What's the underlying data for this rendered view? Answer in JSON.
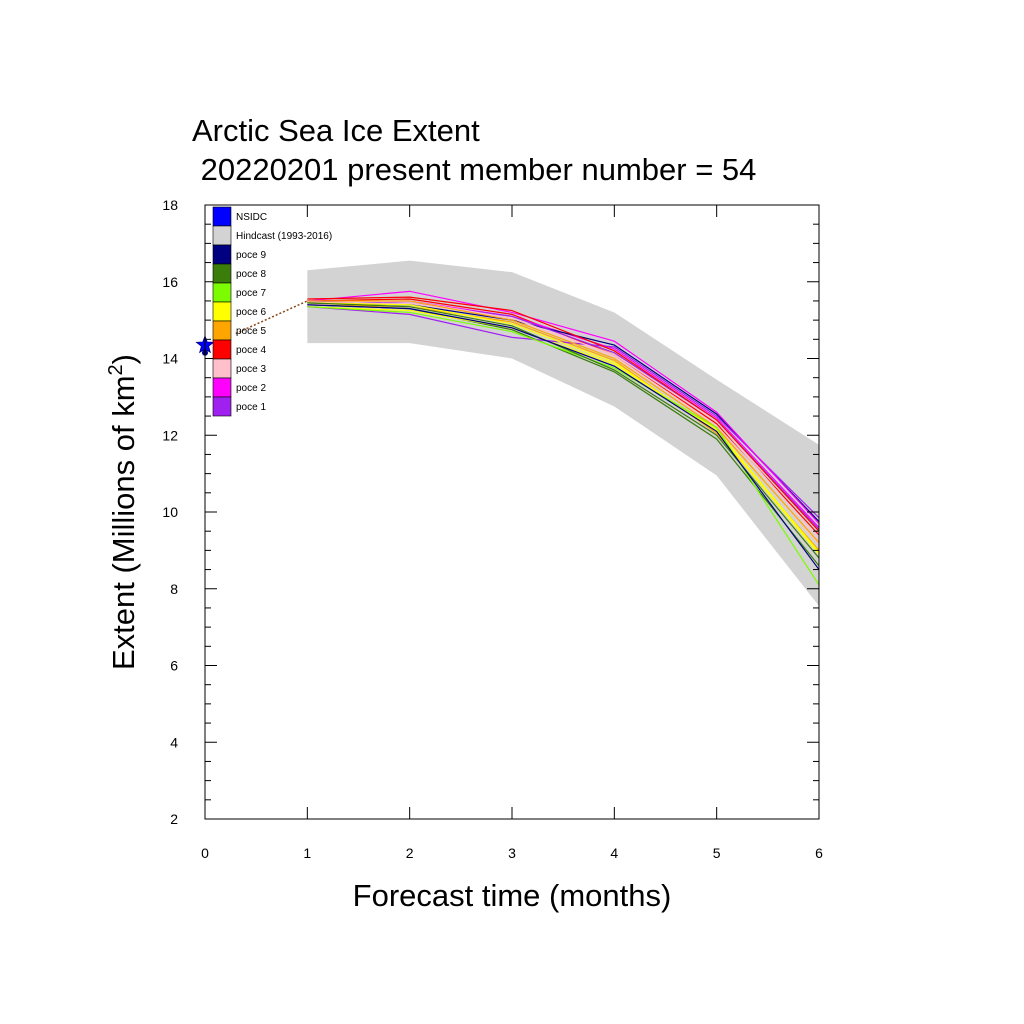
{
  "chart_data": {
    "type": "line",
    "title": "Arctic Sea Ice Extent",
    "subtitle": " 20220201 present member number = 54",
    "xlabel": "Forecast time (months)",
    "ylabel_main": "Extent (Millions of km",
    "ylabel_sup": "2",
    "ylabel_close": ")",
    "xlim": [
      0,
      6
    ],
    "ylim": [
      2,
      18
    ],
    "x_ticks": [
      "0",
      "1",
      "2",
      "3",
      "4",
      "5",
      "6"
    ],
    "y_ticks": [
      "2",
      "4",
      "6",
      "8",
      "10",
      "12",
      "14",
      "16",
      "18"
    ],
    "grid": false,
    "legend_position": "top-left",
    "x": [
      1,
      2,
      3,
      4,
      5,
      6
    ],
    "observation": {
      "name": "NSIDC",
      "x": 0,
      "y": 14.35,
      "color": "#0000ff"
    },
    "observation_point": {
      "x": 0,
      "y": 14.15,
      "color": "#000080"
    },
    "hindcast": {
      "name": "Hindcast (1993-2016)",
      "color": "#d3d3d3",
      "upper": [
        16.3,
        16.55,
        16.25,
        15.2,
        13.45,
        11.75
      ],
      "lower": [
        14.4,
        14.4,
        14.0,
        12.75,
        10.95,
        7.55
      ]
    },
    "connector": {
      "x": [
        0.3,
        1
      ],
      "y": [
        14.65,
        15.5
      ],
      "color": "#8b4513"
    },
    "series": [
      {
        "name": "poce 9",
        "color": "#000080",
        "values": [
          15.4,
          15.3,
          14.8,
          13.8,
          12.1,
          8.5
        ]
      },
      {
        "name": "poce 8",
        "color": "#3a7d0a",
        "values": [
          15.45,
          15.35,
          14.85,
          13.7,
          12.0,
          8.8
        ]
      },
      {
        "name": "poce 7",
        "color": "#7cfc00",
        "values": [
          15.35,
          15.2,
          14.7,
          13.75,
          12.2,
          8.1
        ]
      },
      {
        "name": "poce 6",
        "color": "#ffff00",
        "values": [
          15.45,
          15.4,
          14.9,
          13.9,
          12.1,
          8.9
        ]
      },
      {
        "name": "poce 5",
        "color": "#ffa500",
        "values": [
          15.5,
          15.5,
          15.0,
          14.0,
          12.2,
          9.2
        ]
      },
      {
        "name": "poce 4",
        "color": "#ff0000",
        "values": [
          15.55,
          15.6,
          15.25,
          14.2,
          12.4,
          9.5
        ]
      },
      {
        "name": "poce 3",
        "color": "#ffc0cb",
        "values": [
          15.4,
          15.45,
          15.05,
          14.1,
          12.35,
          9.3
        ]
      },
      {
        "name": "poce 2",
        "color": "#ff00ff",
        "values": [
          15.5,
          15.75,
          15.2,
          14.45,
          12.6,
          9.7
        ]
      },
      {
        "name": "poce 1",
        "color": "#a020f0",
        "values": [
          15.35,
          15.15,
          14.55,
          14.3,
          12.5,
          9.85
        ]
      }
    ],
    "ensemble_extra": [
      {
        "color": "#ff0000",
        "values": [
          15.5,
          15.55,
          15.15,
          14.1,
          12.3,
          9.4
        ]
      },
      {
        "color": "#ff00ff",
        "values": [
          15.45,
          15.5,
          15.1,
          14.25,
          12.45,
          9.6
        ]
      },
      {
        "color": "#ffa500",
        "values": [
          15.4,
          15.35,
          14.95,
          13.95,
          12.05,
          9.0
        ]
      },
      {
        "color": "#000080",
        "values": [
          15.45,
          15.4,
          15.0,
          14.35,
          12.55,
          9.75
        ]
      },
      {
        "color": "#a020f0",
        "values": [
          15.5,
          15.45,
          15.1,
          14.15,
          12.4,
          9.55
        ]
      },
      {
        "color": "#3a7d0a",
        "values": [
          15.4,
          15.3,
          14.75,
          13.65,
          11.9,
          8.6
        ]
      },
      {
        "color": "#ffff00",
        "values": [
          15.35,
          15.25,
          14.8,
          13.85,
          12.15,
          8.95
        ]
      },
      {
        "color": "#ffc0cb",
        "values": [
          15.45,
          15.5,
          15.05,
          14.05,
          12.25,
          9.15
        ]
      }
    ]
  }
}
